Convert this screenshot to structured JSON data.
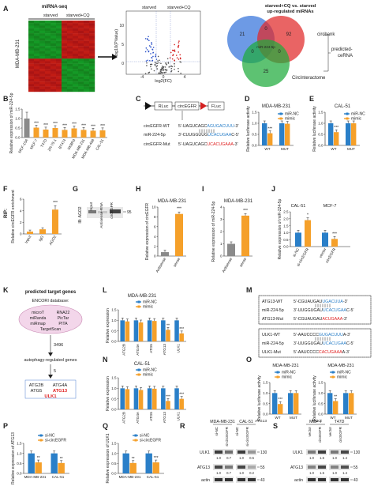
{
  "colors": {
    "orange": "#f5a02a",
    "blue": "#2a7fc8",
    "gray": "#8a8a8a",
    "red": "#e02020",
    "heat_red": "#c81818",
    "heat_green": "#17a82a"
  },
  "panel_letters": [
    "A",
    "B",
    "C",
    "D",
    "E",
    "F",
    "G",
    "H",
    "I",
    "J",
    "K",
    "L",
    "M",
    "N",
    "O",
    "P",
    "Q",
    "R",
    "S"
  ],
  "panelA": {
    "heatmap_title": "miRNA-seq",
    "groups": [
      "starved",
      "starved+CQ"
    ],
    "cell_line": "MDA-MB-231",
    "volcano_groups": [
      "starved",
      "starved+CQ"
    ],
    "volcano_ylabel": "-log10(PValue)",
    "volcano_xlabel": "log2(FC)",
    "volcano_xticks": [
      "-4",
      "0",
      "4"
    ],
    "volcano_yticks": [
      "10",
      "5",
      "0"
    ],
    "venn_title": "starved+CQ vs. starved up-regulated miRNAs",
    "venn_numbers": [
      "21",
      "0",
      "92",
      "0",
      "miR-224-5p",
      "0",
      "25"
    ],
    "venn_labels": [
      "circbank",
      "CircInteractome"
    ],
    "venn_result": "predicted-ceRNA"
  },
  "panelB": {
    "ylabel": "Relative expression of miR-224-5p",
    "stars": "***",
    "yticks": [
      "0.0",
      "0.5",
      "1.0",
      "1.5"
    ],
    "chart_data": {
      "type": "bar",
      "categories": [
        "MCF-10A",
        "MCF-7",
        "T47D",
        "ZR-75-1",
        "BT474",
        "SKBR3",
        "MDA-MB-231",
        "MDA-MB-468",
        "CAL-51"
      ],
      "values": [
        1.0,
        0.52,
        0.42,
        0.5,
        0.4,
        0.48,
        0.4,
        0.36,
        0.38
      ],
      "ylim": [
        0,
        1.5
      ]
    }
  },
  "panelC": {
    "construct": [
      "RLuc",
      "circEGFR",
      "FLuc"
    ],
    "seqs": [
      {
        "name": "circEGFR-WT",
        "pre": "5'-UAGUCAGC",
        "mid": "AGUGACUUU",
        "post": "-3'"
      },
      {
        "name": "miR-224-5p",
        "pre": "3'-CUUGGUUG",
        "mid": "UCACUGAA",
        "post": "C-5'"
      },
      {
        "name": "circEGFR-Mut",
        "pre": "5'-UAGUCAGC",
        "mid": "UCACUGAAA",
        "post": "-3'"
      }
    ]
  },
  "panelD": {
    "title": "MDA-MB-231",
    "legend": [
      "miR-NC",
      "mimic"
    ],
    "ylabel": "Relative luciferase activity",
    "chart_data": {
      "type": "bar",
      "categories": [
        "WT",
        "MUT"
      ],
      "series": [
        {
          "name": "miR-NC",
          "values": [
            1.0,
            1.0
          ]
        },
        {
          "name": "mimic",
          "values": [
            0.55,
            0.98
          ]
        }
      ],
      "ylim": [
        0,
        1.5
      ],
      "yticks": [
        "0.0",
        "0.5",
        "1.0",
        "1.5"
      ]
    },
    "stars": "***"
  },
  "panelE": {
    "title": "CAL-51",
    "legend": [
      "miR-NC",
      "mimic"
    ],
    "ylabel": "Relative luciferase activity",
    "chart_data": {
      "type": "bar",
      "categories": [
        "WT",
        "MUT"
      ],
      "series": [
        {
          "name": "miR-NC",
          "values": [
            1.0,
            1.0
          ]
        },
        {
          "name": "mimic",
          "values": [
            0.6,
            1.0
          ]
        }
      ],
      "ylim": [
        0,
        1.5
      ],
      "yticks": [
        "0.0",
        "0.5",
        "1.0",
        "1.5"
      ]
    },
    "stars": "***"
  },
  "panelF": {
    "label": "RIP:",
    "ylabel": "Relative circEGFR enrichment",
    "stars": "***",
    "chart_data": {
      "type": "bar",
      "categories": [
        "Input",
        "IgG",
        "AGO2"
      ],
      "values": [
        0.4,
        0.8,
        4.2
      ],
      "ylim": [
        0,
        6
      ],
      "yticks": [
        "0",
        "2",
        "4",
        "6"
      ]
    }
  },
  "panelG": {
    "ylabel": "IB: AGO2",
    "lanes": [
      "Input",
      "Antisense-RNA",
      "circEGFR"
    ],
    "marker": "95"
  },
  "panelH": {
    "title": "MDA-MB-231",
    "ylabel": "Relative expression of circEGFR",
    "stars": "***",
    "chart_data": {
      "type": "bar",
      "categories": [
        "Antisense",
        "sense"
      ],
      "values": [
        0.8,
        8.6
      ],
      "ylim": [
        0,
        10
      ],
      "yticks": [
        "0",
        "2",
        "4",
        "6",
        "8",
        "10"
      ]
    }
  },
  "panelI": {
    "title": "MDA-MB-231",
    "ylabel": "Relative expression of miR-224-5p",
    "stars": "***",
    "chart_data": {
      "type": "bar",
      "categories": [
        "Antisense",
        "sense"
      ],
      "values": [
        1.0,
        3.3
      ],
      "ylim": [
        0,
        4
      ],
      "yticks": [
        "0",
        "1",
        "2",
        "3",
        "4"
      ]
    }
  },
  "panelJ": {
    "titles": [
      "CAL-51",
      "MCF-7"
    ],
    "ylabel": "Relative expression of miR-224-5p",
    "stars": [
      "*",
      "***"
    ],
    "chart_data": {
      "type": "bar",
      "categories": [
        "si-NC",
        "si-circEGFR",
        "vector",
        "circEGFR"
      ],
      "values": [
        1.0,
        1.9,
        1.0,
        0.55
      ],
      "ylim": [
        0,
        2.5
      ],
      "yticks": [
        "0.0",
        "0.5",
        "1.0",
        "1.5",
        "2.0",
        "2.5"
      ]
    }
  },
  "panelK": {
    "title": "predicted target genes",
    "db": "ENCORI database:",
    "tools": [
      "microT",
      "RNA22",
      "miRanda",
      "PicTar",
      "miRmap",
      "PITA",
      "TargetScan"
    ],
    "n1": "3496",
    "step": "autophagy-regulated genes",
    "n2": "5",
    "genes": [
      "ATG2B",
      "ATG4A",
      "ATG5",
      "ATG13",
      "ULK1"
    ]
  },
  "panelL": {
    "title": "MDA-MB-231",
    "legend": [
      "miR-NC",
      "mimic"
    ],
    "ylabel": "Relative expression",
    "chart_data": {
      "type": "bar",
      "categories": [
        "ATG2B",
        "ATG4A",
        "ATG5",
        "ATG13",
        "ULK1"
      ],
      "series": [
        {
          "name": "miR-NC",
          "values": [
            1.0,
            1.0,
            1.0,
            1.0,
            1.0
          ]
        },
        {
          "name": "mimic",
          "values": [
            0.95,
            0.9,
            0.97,
            0.55,
            0.38
          ]
        }
      ],
      "ylim": [
        0,
        1.5
      ],
      "yticks": [
        "0.0",
        "0.5",
        "1.0",
        "1.5"
      ]
    },
    "stars": [
      "**",
      "***"
    ]
  },
  "panelM": {
    "title": "CAL-51",
    "legend": [
      "miR-NC",
      "mimic"
    ],
    "ylabel": "Relative expression",
    "chart_data": {
      "type": "bar",
      "categories": [
        "ATG2B",
        "ATG4A",
        "ATG5",
        "ATG13",
        "ULK1"
      ],
      "series": [
        {
          "name": "miR-NC",
          "values": [
            1.0,
            1.0,
            1.0,
            1.0,
            1.0
          ]
        },
        {
          "name": "mimic",
          "values": [
            0.96,
            0.92,
            0.98,
            0.4,
            0.5
          ]
        }
      ],
      "ylim": [
        0,
        1.5
      ],
      "yticks": [
        "0.0",
        "0.5",
        "1.0",
        "1.5"
      ]
    },
    "stars": [
      "***",
      "***"
    ]
  },
  "panelN": {
    "box1": [
      {
        "name": "ATG13-WT",
        "pre": "5'-CGUAUGAU",
        "mid": "UGACUUA",
        "post": "-3'"
      },
      {
        "name": "miR-224-5p",
        "pre": "3'-UUGGUGAU",
        "mid": "UCACUGAA",
        "post": "C-5'"
      },
      {
        "name": "ATG13-Mut",
        "pre": "5'-CGUAUGAU",
        "mid": "ACUGAAA",
        "post": "-3'"
      }
    ],
    "box2": [
      {
        "name": "ULK1-WT",
        "pre": "5'-AAUCCCC",
        "mid": "GUGACUUU",
        "post": "A-3'"
      },
      {
        "name": "miR-224-5p",
        "pre": "3'-UUGGUGAU",
        "mid": "UCACUGAA",
        "post": "C-5'"
      },
      {
        "name": "ULK1-Mut",
        "pre": "5'-AAUCCCC",
        "mid": "CACUGAAA",
        "post": "A-3'"
      }
    ]
  },
  "panelO": {
    "titles": [
      "MDA-MB-231",
      "MDA-MB-231"
    ],
    "legend": [
      "miR-NC",
      "mimic"
    ],
    "ylabel": "Relative luciferase activity",
    "chart_data": [
      {
        "type": "bar",
        "categories": [
          "WT",
          "MUT"
        ],
        "group": "ATG13",
        "series": [
          {
            "name": "miR-NC",
            "values": [
              1.0,
              1.0
            ]
          },
          {
            "name": "mimic",
            "values": [
              0.48,
              1.0
            ]
          }
        ],
        "ylim": [
          0,
          1.5
        ]
      },
      {
        "type": "bar",
        "categories": [
          "WT",
          "MUT"
        ],
        "group": "ULK1",
        "series": [
          {
            "name": "miR-NC",
            "values": [
              1.0,
              1.0
            ]
          },
          {
            "name": "mimic",
            "values": [
              0.62,
              1.0
            ]
          }
        ],
        "ylim": [
          0,
          1.5
        ]
      }
    ],
    "yticks": [
      "0.0",
      "0.5",
      "1.0",
      "1.5"
    ],
    "stars": [
      "***",
      "**"
    ]
  },
  "panelP": {
    "legend": [
      "si-NC",
      "si-circEGFR"
    ],
    "ylabel": "Relative expression of ATG13",
    "chart_data": {
      "type": "bar",
      "categories": [
        "MDA-MB-231",
        "CAL-51"
      ],
      "series": [
        {
          "name": "si-NC",
          "values": [
            1.0,
            1.0
          ]
        },
        {
          "name": "si-circEGFR",
          "values": [
            0.55,
            0.52
          ]
        }
      ],
      "ylim": [
        0,
        1.5
      ],
      "yticks": [
        "0.0",
        "0.5",
        "1.0",
        "1.5"
      ]
    },
    "stars": [
      "**",
      "**"
    ]
  },
  "panelQ": {
    "legend": [
      "si-NC",
      "si-circEGFR"
    ],
    "ylabel": "Relative expression of ULK1",
    "chart_data": {
      "type": "bar",
      "categories": [
        "MDA-MB-231",
        "CAL-51"
      ],
      "series": [
        {
          "name": "si-NC",
          "values": [
            1.0,
            1.0
          ]
        },
        {
          "name": "si-circEGFR",
          "values": [
            0.52,
            0.55
          ]
        }
      ],
      "ylim": [
        0,
        1.5
      ],
      "yticks": [
        "0.0",
        "0.5",
        "1.0",
        "1.5"
      ]
    },
    "stars": [
      "**",
      "***"
    ]
  },
  "panelR": {
    "cells": [
      "MDA-MB-231",
      "CAL-51"
    ],
    "lanes": [
      "si-NC",
      "si-circEGFR",
      "si-NC",
      "si-circEGFR"
    ],
    "proteins": [
      "ULK1",
      "ATG13",
      "actin"
    ],
    "markers": [
      "130",
      "55",
      "43"
    ],
    "q1": [
      "1.0",
      "0.7",
      "1.0",
      "0.5"
    ],
    "q2": [
      "1.0",
      "0.7",
      "1.0",
      "0.2"
    ]
  },
  "panelS": {
    "cells": [
      "MCF-7",
      "T47D"
    ],
    "lanes": [
      "vector",
      "circEGFR",
      "vector",
      "circEGFR"
    ],
    "proteins": [
      "ULK1",
      "ATG13",
      "actin"
    ],
    "markers": [
      "130",
      "55",
      "43"
    ],
    "q1": [
      "1.0",
      "1.6",
      "1.0",
      "1.4"
    ],
    "q2": [
      "1.0",
      "1.5",
      "1.0",
      "1.4"
    ]
  }
}
